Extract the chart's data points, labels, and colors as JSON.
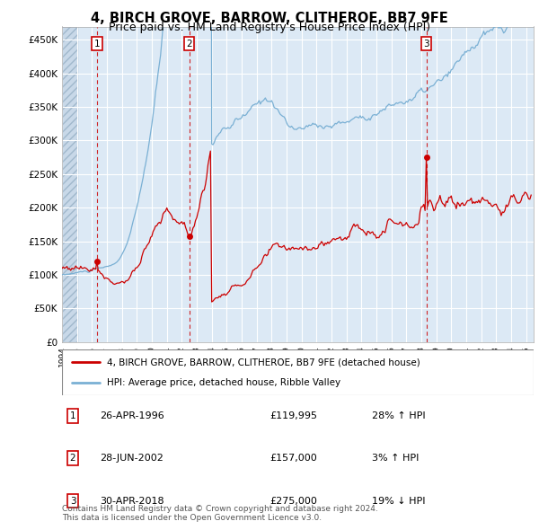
{
  "title": "4, BIRCH GROVE, BARROW, CLITHEROE, BB7 9FE",
  "subtitle": "Price paid vs. HM Land Registry's House Price Index (HPI)",
  "title_fontsize": 11,
  "subtitle_fontsize": 9.5,
  "ylabel_ticks": [
    "£0",
    "£50K",
    "£100K",
    "£150K",
    "£200K",
    "£250K",
    "£300K",
    "£350K",
    "£400K",
    "£450K"
  ],
  "ytick_vals": [
    0,
    50000,
    100000,
    150000,
    200000,
    250000,
    300000,
    350000,
    400000,
    450000
  ],
  "ylim": [
    0,
    470000
  ],
  "xlim_start": 1994.0,
  "xlim_end": 2025.5,
  "sale1_date": 1996.32,
  "sale1_price": 119995,
  "sale2_date": 2002.49,
  "sale2_price": 157000,
  "sale3_date": 2018.33,
  "sale3_price": 275000,
  "line_color_property": "#cc0000",
  "line_color_hpi": "#7ab0d4",
  "dot_color": "#cc0000",
  "vline_color": "#cc0000",
  "box_color": "#cc0000",
  "background_chart": "#dce9f5",
  "legend_label_property": "4, BIRCH GROVE, BARROW, CLITHEROE, BB7 9FE (detached house)",
  "legend_label_hpi": "HPI: Average price, detached house, Ribble Valley",
  "table_rows": [
    {
      "num": "1",
      "date": "26-APR-1996",
      "price": "£119,995",
      "change": "28% ↑ HPI"
    },
    {
      "num": "2",
      "date": "28-JUN-2002",
      "price": "£157,000",
      "change": "3% ↑ HPI"
    },
    {
      "num": "3",
      "date": "30-APR-2018",
      "price": "£275,000",
      "change": "19% ↓ HPI"
    }
  ],
  "footnote": "Contains HM Land Registry data © Crown copyright and database right 2024.\nThis data is licensed under the Open Government Licence v3.0."
}
